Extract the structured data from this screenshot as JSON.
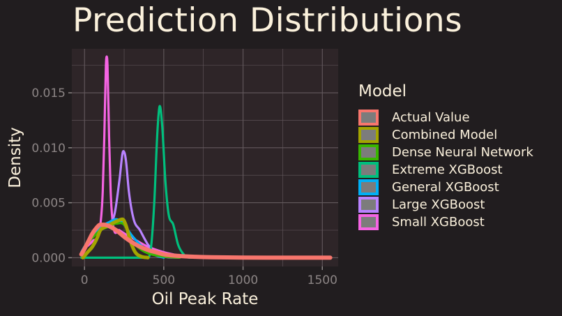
{
  "chart_data": {
    "type": "line",
    "title": "Prediction Distributions",
    "xlabel": "Oil Peak Rate",
    "ylabel": "Density",
    "xlim": [
      -80,
      1600
    ],
    "ylim": [
      -0.0008,
      0.019
    ],
    "x_ticks": [
      0,
      500,
      1000,
      1500
    ],
    "x_tick_labels": [
      "0",
      "500",
      "1000",
      "1500"
    ],
    "y_ticks": [
      0.0,
      0.005,
      0.01,
      0.015
    ],
    "y_tick_labels": [
      "0.000",
      "0.005",
      "0.010",
      "0.015"
    ],
    "grid": true,
    "legend_title": "Model",
    "legend_position": "right",
    "series": [
      {
        "name": "Small XGBoost",
        "color": "#f564e3",
        "points": [
          [
            -20,
            0.0003
          ],
          [
            0,
            0.0008
          ],
          [
            50,
            0.0015
          ],
          [
            100,
            0.003
          ],
          [
            115,
            0.006
          ],
          [
            125,
            0.011
          ],
          [
            135,
            0.0175
          ],
          [
            140,
            0.0183
          ],
          [
            145,
            0.0175
          ],
          [
            155,
            0.011
          ],
          [
            165,
            0.006
          ],
          [
            180,
            0.003
          ],
          [
            220,
            0.0025
          ],
          [
            300,
            0.0018
          ],
          [
            400,
            0.001
          ],
          [
            500,
            0.0005
          ],
          [
            600,
            0.0002
          ],
          [
            700,
            5e-05
          ],
          [
            800,
            0.0
          ]
        ]
      },
      {
        "name": "Large XGBoost",
        "color": "#b983ff",
        "points": [
          [
            -20,
            0.0005
          ],
          [
            0,
            0.001
          ],
          [
            50,
            0.002
          ],
          [
            100,
            0.003
          ],
          [
            150,
            0.003
          ],
          [
            190,
            0.004
          ],
          [
            220,
            0.007
          ],
          [
            245,
            0.0097
          ],
          [
            260,
            0.009
          ],
          [
            280,
            0.006
          ],
          [
            310,
            0.0035
          ],
          [
            350,
            0.0025
          ],
          [
            400,
            0.0012
          ],
          [
            450,
            0.0004
          ],
          [
            500,
            0.0001
          ],
          [
            600,
            0.0
          ]
        ]
      },
      {
        "name": "General XGBoost",
        "color": "#00b0f6",
        "points": [
          [
            -20,
            0.0005
          ],
          [
            0,
            0.001
          ],
          [
            50,
            0.002
          ],
          [
            100,
            0.0028
          ],
          [
            150,
            0.0032
          ],
          [
            200,
            0.0035
          ],
          [
            230,
            0.0033
          ],
          [
            260,
            0.0028
          ],
          [
            300,
            0.002
          ],
          [
            350,
            0.0012
          ],
          [
            400,
            0.0006
          ],
          [
            450,
            0.0002
          ],
          [
            500,
            0.0
          ]
        ]
      },
      {
        "name": "Extreme XGBoost",
        "color": "#00bf7d",
        "points": [
          [
            -20,
            0.0
          ],
          [
            200,
            0.0
          ],
          [
            400,
            0.0
          ],
          [
            420,
            0.001
          ],
          [
            440,
            0.005
          ],
          [
            460,
            0.0115
          ],
          [
            475,
            0.0138
          ],
          [
            490,
            0.012
          ],
          [
            510,
            0.007
          ],
          [
            530,
            0.004
          ],
          [
            560,
            0.003
          ],
          [
            590,
            0.0012
          ],
          [
            620,
            0.0004
          ],
          [
            660,
            0.0
          ],
          [
            800,
            0.0
          ]
        ]
      },
      {
        "name": "Dense Neural Network",
        "color": "#39b600",
        "points": [
          [
            0,
            0.001
          ],
          [
            50,
            0.0018
          ],
          [
            100,
            0.0025
          ],
          [
            150,
            0.0028
          ],
          [
            200,
            0.0031
          ],
          [
            250,
            0.003
          ],
          [
            300,
            0.0015
          ],
          [
            350,
            0.0008
          ],
          [
            400,
            0.0004
          ],
          [
            500,
            0.0001
          ],
          [
            600,
            0.0
          ]
        ]
      },
      {
        "name": "Combined Model",
        "color": "#a3a500",
        "points": [
          [
            -10,
            0.0
          ],
          [
            20,
            0.0005
          ],
          [
            50,
            0.001
          ],
          [
            80,
            0.0018
          ],
          [
            100,
            0.0025
          ],
          [
            130,
            0.0028
          ],
          [
            160,
            0.003
          ],
          [
            200,
            0.0033
          ],
          [
            240,
            0.0035
          ],
          [
            260,
            0.003
          ],
          [
            290,
            0.0015
          ],
          [
            320,
            0.0005
          ],
          [
            360,
            0.0001
          ],
          [
            400,
            0.0
          ]
        ]
      },
      {
        "name": "Actual Value",
        "color": "#f8766d",
        "points": [
          [
            -20,
            0.0003
          ],
          [
            0,
            0.0008
          ],
          [
            25,
            0.0015
          ],
          [
            50,
            0.0022
          ],
          [
            75,
            0.0027
          ],
          [
            100,
            0.003
          ],
          [
            125,
            0.003
          ],
          [
            150,
            0.0029
          ],
          [
            200,
            0.0025
          ],
          [
            250,
            0.0019
          ],
          [
            300,
            0.0014
          ],
          [
            350,
            0.001
          ],
          [
            400,
            0.0007
          ],
          [
            450,
            0.0005
          ],
          [
            500,
            0.0003
          ],
          [
            600,
            0.00015
          ],
          [
            700,
            8e-05
          ],
          [
            800,
            4e-05
          ],
          [
            1000,
            1e-05
          ],
          [
            1200,
            0.0
          ],
          [
            1550,
            0.0
          ]
        ]
      }
    ]
  },
  "legend": {
    "title": "Model",
    "items": [
      {
        "label": "Actual Value",
        "color": "#f8766d"
      },
      {
        "label": "Combined Model",
        "color": "#a3a500"
      },
      {
        "label": "Dense Neural Network",
        "color": "#39b600"
      },
      {
        "label": "Extreme XGBoost",
        "color": "#00bf7d"
      },
      {
        "label": "General XGBoost",
        "color": "#00b0f6"
      },
      {
        "label": "Large XGBoost",
        "color": "#b983ff"
      },
      {
        "label": "Small XGBoost",
        "color": "#f564e3"
      }
    ]
  },
  "colors": {
    "background": "#211d1f",
    "panel": "#2e2528",
    "grid": "#645a5e",
    "text": "#fbf1dc",
    "tick": "#8c8585"
  }
}
